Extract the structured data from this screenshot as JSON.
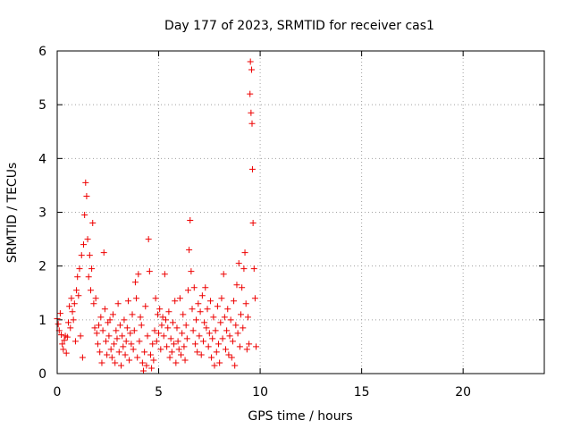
{
  "chart_data": {
    "type": "scatter",
    "title": "Day 177 of 2023, SRMTID for receiver cas1",
    "xlabel": "GPS time / hours",
    "ylabel": "SRMTID / TECUs",
    "xlim": [
      0,
      24
    ],
    "ylim": [
      0,
      6
    ],
    "x_ticks": [
      0,
      5,
      10,
      15,
      20
    ],
    "x_tick_labels": [
      "0",
      "5",
      "10",
      "15",
      "20"
    ],
    "y_ticks": [
      0,
      1,
      2,
      3,
      4,
      5,
      6
    ],
    "y_tick_labels": [
      "0",
      "1",
      "2",
      "3",
      "4",
      "5",
      "6"
    ],
    "grid": true,
    "marker": "+",
    "color": "#ee0000",
    "series": [
      {
        "name": "SRMTID",
        "points": [
          [
            0.0,
            1.02
          ],
          [
            0.05,
            0.92
          ],
          [
            0.1,
            0.8
          ],
          [
            0.15,
            1.12
          ],
          [
            0.2,
            0.72
          ],
          [
            0.25,
            0.55
          ],
          [
            0.3,
            0.45
          ],
          [
            0.35,
            0.62
          ],
          [
            0.4,
            0.7
          ],
          [
            0.45,
            0.38
          ],
          [
            0.5,
            0.68
          ],
          [
            0.55,
            0.95
          ],
          [
            0.6,
            1.25
          ],
          [
            0.65,
            0.85
          ],
          [
            0.7,
            1.4
          ],
          [
            0.75,
            1.15
          ],
          [
            0.8,
            1.0
          ],
          [
            0.85,
            1.3
          ],
          [
            0.9,
            0.6
          ],
          [
            0.95,
            1.55
          ],
          [
            1.0,
            1.8
          ],
          [
            1.05,
            1.45
          ],
          [
            1.1,
            1.95
          ],
          [
            1.15,
            0.7
          ],
          [
            1.2,
            2.2
          ],
          [
            1.25,
            0.3
          ],
          [
            1.3,
            2.4
          ],
          [
            1.35,
            2.95
          ],
          [
            1.4,
            3.55
          ],
          [
            1.45,
            3.3
          ],
          [
            1.5,
            2.5
          ],
          [
            1.55,
            1.8
          ],
          [
            1.6,
            2.2
          ],
          [
            1.65,
            1.55
          ],
          [
            1.7,
            1.95
          ],
          [
            1.75,
            2.8
          ],
          [
            1.8,
            1.3
          ],
          [
            1.85,
            0.85
          ],
          [
            1.9,
            1.4
          ],
          [
            1.95,
            0.75
          ],
          [
            2.0,
            0.55
          ],
          [
            2.05,
            0.9
          ],
          [
            2.1,
            0.4
          ],
          [
            2.15,
            1.05
          ],
          [
            2.2,
            0.2
          ],
          [
            2.25,
            0.8
          ],
          [
            2.3,
            2.25
          ],
          [
            2.35,
            1.2
          ],
          [
            2.4,
            0.6
          ],
          [
            2.45,
            0.35
          ],
          [
            2.5,
            0.95
          ],
          [
            2.55,
            0.7
          ],
          [
            2.6,
            1.0
          ],
          [
            2.65,
            0.45
          ],
          [
            2.7,
            0.3
          ],
          [
            2.75,
            1.1
          ],
          [
            2.8,
            0.55
          ],
          [
            2.85,
            0.2
          ],
          [
            2.9,
            0.8
          ],
          [
            2.95,
            0.65
          ],
          [
            3.0,
            1.3
          ],
          [
            3.05,
            0.4
          ],
          [
            3.1,
            0.9
          ],
          [
            3.15,
            0.15
          ],
          [
            3.2,
            0.7
          ],
          [
            3.25,
            0.5
          ],
          [
            3.3,
            1.0
          ],
          [
            3.35,
            0.35
          ],
          [
            3.4,
            0.6
          ],
          [
            3.45,
            0.85
          ],
          [
            3.5,
            1.35
          ],
          [
            3.55,
            0.25
          ],
          [
            3.6,
            0.75
          ],
          [
            3.65,
            0.55
          ],
          [
            3.7,
            1.1
          ],
          [
            3.75,
            0.45
          ],
          [
            3.8,
            0.8
          ],
          [
            3.85,
            1.7
          ],
          [
            3.9,
            1.4
          ],
          [
            3.95,
            0.3
          ],
          [
            4.0,
            1.85
          ],
          [
            4.05,
            0.6
          ],
          [
            4.1,
            1.05
          ],
          [
            4.15,
            0.9
          ],
          [
            4.2,
            0.2
          ],
          [
            4.25,
            0.05
          ],
          [
            4.3,
            0.4
          ],
          [
            4.35,
            1.25
          ],
          [
            4.4,
            0.15
          ],
          [
            4.45,
            0.7
          ],
          [
            4.5,
            2.5
          ],
          [
            4.55,
            1.9
          ],
          [
            4.6,
            0.35
          ],
          [
            4.65,
            0.1
          ],
          [
            4.7,
            0.55
          ],
          [
            4.75,
            0.25
          ],
          [
            4.8,
            0.8
          ],
          [
            4.85,
            1.4
          ],
          [
            4.9,
            0.6
          ],
          [
            4.95,
            1.1
          ],
          [
            5.0,
            0.75
          ],
          [
            5.05,
            1.2
          ],
          [
            5.1,
            0.45
          ],
          [
            5.15,
            0.9
          ],
          [
            5.2,
            1.05
          ],
          [
            5.25,
            0.7
          ],
          [
            5.3,
            1.85
          ],
          [
            5.35,
            1.0
          ],
          [
            5.4,
            0.5
          ],
          [
            5.45,
            0.85
          ],
          [
            5.5,
            1.15
          ],
          [
            5.55,
            0.3
          ],
          [
            5.6,
            0.65
          ],
          [
            5.65,
            0.4
          ],
          [
            5.7,
            0.95
          ],
          [
            5.75,
            0.55
          ],
          [
            5.8,
            1.35
          ],
          [
            5.85,
            0.2
          ],
          [
            5.9,
            0.85
          ],
          [
            5.95,
            0.6
          ],
          [
            6.0,
            0.45
          ],
          [
            6.05,
            1.4
          ],
          [
            6.1,
            0.35
          ],
          [
            6.15,
            0.75
          ],
          [
            6.2,
            1.1
          ],
          [
            6.25,
            0.5
          ],
          [
            6.3,
            0.25
          ],
          [
            6.35,
            0.9
          ],
          [
            6.4,
            0.65
          ],
          [
            6.45,
            1.55
          ],
          [
            6.5,
            2.3
          ],
          [
            6.55,
            2.85
          ],
          [
            6.6,
            1.9
          ],
          [
            6.65,
            1.2
          ],
          [
            6.7,
            0.8
          ],
          [
            6.75,
            1.6
          ],
          [
            6.8,
            0.55
          ],
          [
            6.85,
            1.0
          ],
          [
            6.9,
            0.4
          ],
          [
            6.95,
            1.3
          ],
          [
            7.0,
            0.7
          ],
          [
            7.05,
            1.15
          ],
          [
            7.1,
            0.35
          ],
          [
            7.15,
            1.45
          ],
          [
            7.2,
            0.6
          ],
          [
            7.25,
            0.95
          ],
          [
            7.3,
            1.6
          ],
          [
            7.35,
            0.85
          ],
          [
            7.4,
            1.2
          ],
          [
            7.45,
            0.5
          ],
          [
            7.5,
            0.75
          ],
          [
            7.55,
            1.35
          ],
          [
            7.6,
            0.3
          ],
          [
            7.65,
            0.65
          ],
          [
            7.7,
            1.05
          ],
          [
            7.75,
            0.15
          ],
          [
            7.8,
            0.8
          ],
          [
            7.85,
            0.4
          ],
          [
            7.9,
            1.25
          ],
          [
            7.95,
            0.55
          ],
          [
            8.0,
            0.2
          ],
          [
            8.05,
            0.95
          ],
          [
            8.1,
            1.4
          ],
          [
            8.15,
            0.65
          ],
          [
            8.2,
            1.85
          ],
          [
            8.25,
            1.05
          ],
          [
            8.3,
            0.45
          ],
          [
            8.35,
            0.8
          ],
          [
            8.4,
            1.2
          ],
          [
            8.45,
            0.35
          ],
          [
            8.5,
            0.7
          ],
          [
            8.55,
            1.0
          ],
          [
            8.6,
            0.3
          ],
          [
            8.65,
            0.6
          ],
          [
            8.7,
            1.35
          ],
          [
            8.75,
            0.15
          ],
          [
            8.8,
            0.9
          ],
          [
            8.85,
            1.65
          ],
          [
            8.9,
            0.75
          ],
          [
            8.95,
            2.05
          ],
          [
            9.0,
            0.5
          ],
          [
            9.05,
            1.1
          ],
          [
            9.1,
            1.6
          ],
          [
            9.15,
            0.85
          ],
          [
            9.2,
            1.95
          ],
          [
            9.25,
            2.25
          ],
          [
            9.3,
            1.3
          ],
          [
            9.35,
            0.45
          ],
          [
            9.4,
            1.05
          ],
          [
            9.45,
            0.55
          ],
          [
            9.5,
            5.2
          ],
          [
            9.52,
            5.8
          ],
          [
            9.55,
            4.85
          ],
          [
            9.58,
            5.65
          ],
          [
            9.6,
            4.65
          ],
          [
            9.62,
            3.8
          ],
          [
            9.65,
            2.8
          ],
          [
            9.7,
            1.95
          ],
          [
            9.75,
            1.4
          ],
          [
            9.8,
            0.5
          ]
        ]
      }
    ]
  }
}
